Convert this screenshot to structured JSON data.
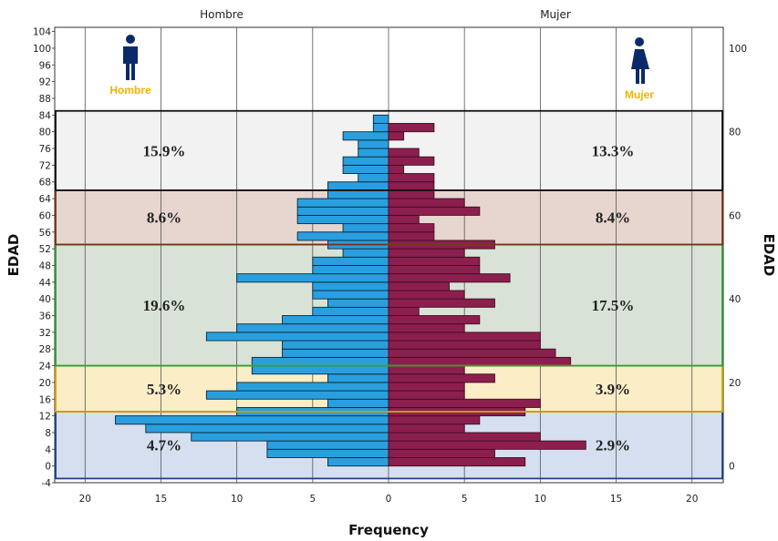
{
  "chart_data": {
    "type": "bar",
    "orientation": "horizontal-population-pyramid",
    "panels": [
      "Hombre",
      "Mujer"
    ],
    "xlabel": "Frequency",
    "ylabel": "EDAD",
    "x_ticks": [
      "20",
      "15",
      "10",
      "5",
      "0",
      "5",
      "10",
      "15",
      "20"
    ],
    "x_range_each_side": [
      0,
      22
    ],
    "y_range": [
      -4,
      105
    ],
    "y_ticks_left": [
      "-4",
      "0",
      "4",
      "8",
      "12",
      "16",
      "20",
      "24",
      "28",
      "32",
      "36",
      "40",
      "44",
      "48",
      "52",
      "56",
      "60",
      "64",
      "68",
      "72",
      "76",
      "80",
      "84",
      "88",
      "92",
      "96",
      "100",
      "104"
    ],
    "y_ticks_right": [
      "0",
      "20",
      "40",
      "60",
      "80",
      "100"
    ],
    "age_bins": [
      0,
      2,
      4,
      6,
      8,
      10,
      12,
      14,
      16,
      18,
      20,
      22,
      24,
      26,
      28,
      30,
      32,
      34,
      36,
      38,
      40,
      42,
      44,
      46,
      48,
      50,
      52,
      54,
      56,
      58,
      60,
      62,
      64,
      66,
      68,
      70,
      72,
      74,
      76,
      78,
      80,
      82
    ],
    "series": [
      {
        "name": "Hombre",
        "color": "#2a9fe0",
        "values": [
          4,
          8,
          8,
          13,
          16,
          18,
          10,
          4,
          12,
          10,
          4,
          9,
          9,
          7,
          7,
          12,
          10,
          7,
          5,
          4,
          5,
          5,
          10,
          5,
          5,
          3,
          4,
          6,
          3,
          6,
          6,
          6,
          4,
          4,
          2,
          3,
          3,
          2,
          2,
          3,
          1,
          1
        ]
      },
      {
        "name": "Mujer",
        "color": "#8c1f4e",
        "values": [
          9,
          7,
          13,
          10,
          5,
          6,
          9,
          10,
          5,
          5,
          7,
          5,
          12,
          11,
          10,
          10,
          5,
          6,
          2,
          7,
          5,
          4,
          8,
          6,
          6,
          5,
          7,
          3,
          3,
          2,
          6,
          5,
          3,
          3,
          3,
          1,
          3,
          2,
          0,
          1,
          3,
          0
        ]
      }
    ],
    "bands": [
      {
        "from": -3,
        "to": 13,
        "fill": "#d5dff0",
        "stroke": "#1f3f8a",
        "male_pct": "4.7%",
        "female_pct": "2.9%"
      },
      {
        "from": 13,
        "to": 24,
        "fill": "#fbedc6",
        "stroke": "#d9a400",
        "male_pct": "5.3%",
        "female_pct": "3.9%"
      },
      {
        "from": 24,
        "to": 53,
        "fill": "#d9e2d6",
        "stroke": "#2e9e3e",
        "male_pct": "19.6%",
        "female_pct": "17.5%"
      },
      {
        "from": 53,
        "to": 66,
        "fill": "#e6d6cf",
        "stroke": "#7b3414",
        "male_pct": "8.6%",
        "female_pct": "8.4%"
      },
      {
        "from": 66,
        "to": 85,
        "fill": "#f2f2f2",
        "stroke": "#111111",
        "male_pct": "15.9%",
        "female_pct": "13.3%"
      }
    ],
    "legend": {
      "male_label": "Hombre",
      "female_label": "Mujer",
      "male_icon": "male-person-icon",
      "female_icon": "female-person-icon",
      "icon_color": "#0b2a6b"
    }
  }
}
